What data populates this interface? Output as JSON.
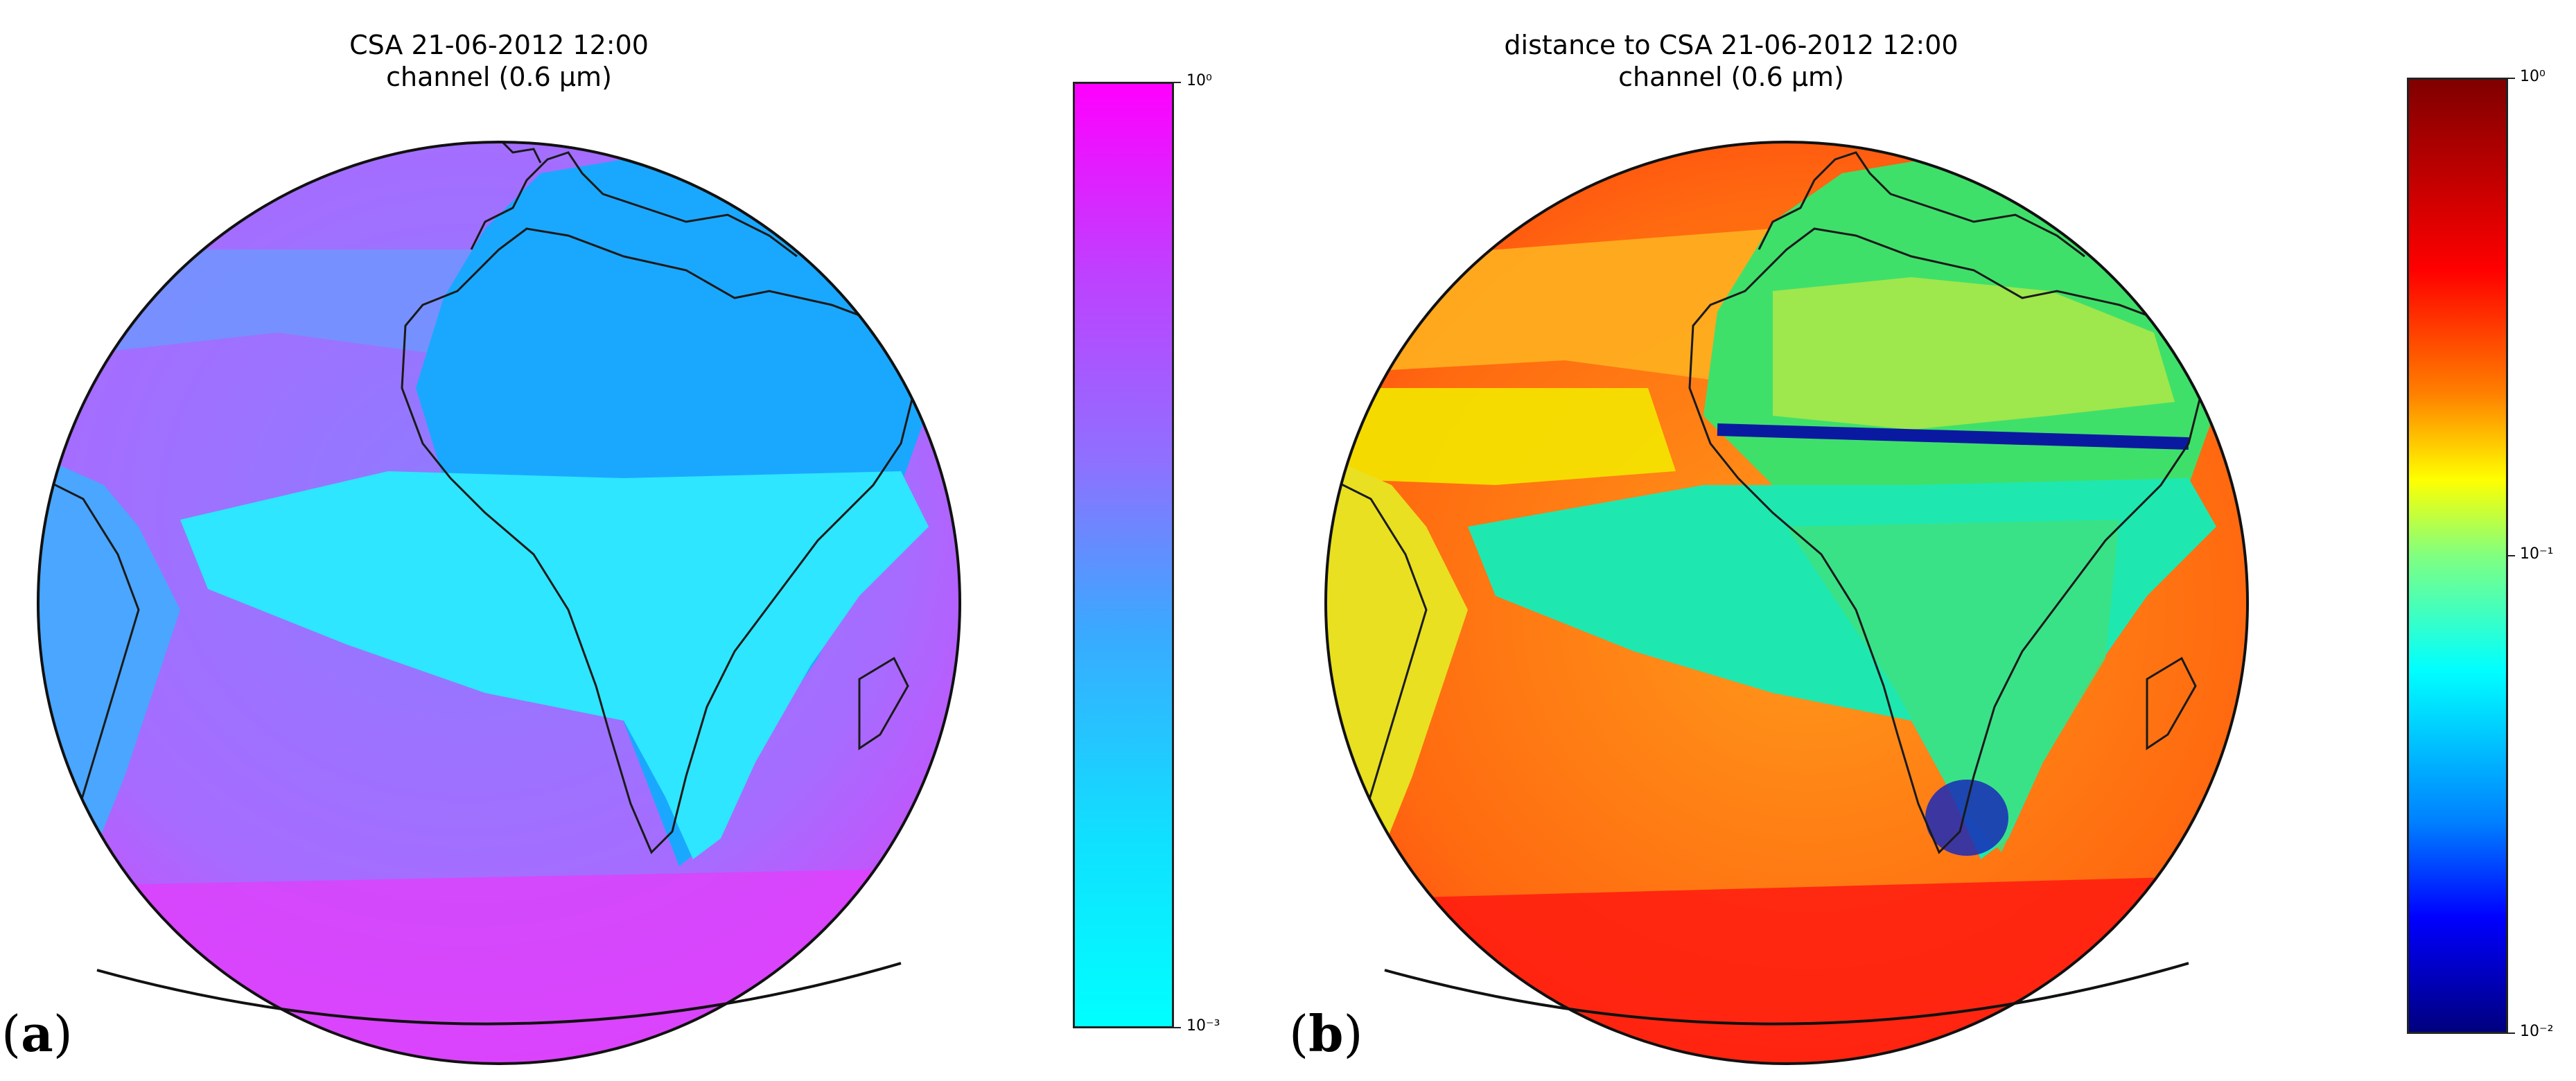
{
  "panels": [
    {
      "label_open": "(",
      "label_letter": "a",
      "label_close": ")",
      "title_line1": "CSA 21-06-2012 12:00",
      "title_line2": "channel (0.6 μm)",
      "colormap": "cool",
      "colorbar": {
        "scale": "log",
        "range": [
          0.001,
          1
        ],
        "tick_top": "10⁰",
        "tick_bottom": "10⁻³"
      }
    },
    {
      "label_open": "(",
      "label_letter": "b",
      "label_close": ")",
      "title_line1": "distance to CSA 21-06-2012 12:00",
      "title_line2": "channel (0.6 μm)",
      "colormap": "jet",
      "colorbar": {
        "scale": "log",
        "range": [
          0.01,
          1
        ],
        "tick_top": "10⁰",
        "tick_mid": "10⁻¹",
        "tick_bottom": "10⁻²"
      }
    }
  ]
}
